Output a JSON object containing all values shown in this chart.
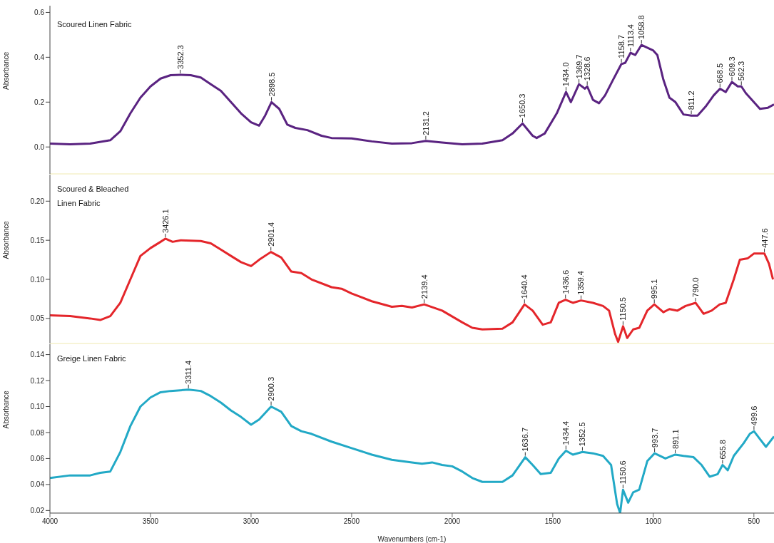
{
  "chart_data": [
    {
      "type": "line",
      "title": "Scoured Linen Fabric",
      "ylabel": "Absorbance",
      "xlim": [
        4000,
        400
      ],
      "ylim": [
        -0.12,
        0.63
      ],
      "yticks": [
        {
          "value": 0,
          "label": "0.0"
        },
        {
          "value": 0.2,
          "label": "0.2"
        },
        {
          "value": 0.4,
          "label": "0.4"
        },
        {
          "value": 0.6,
          "label": "0.6"
        }
      ],
      "tick_labels": "y",
      "x": [
        4000,
        3900,
        3800,
        3700,
        3650,
        3600,
        3550,
        3500,
        3450,
        3400,
        3352.3,
        3300,
        3250,
        3200,
        3150,
        3100,
        3050,
        3000,
        2960,
        2930,
        2898.5,
        2860,
        2820,
        2780,
        2720,
        2650,
        2600,
        2500,
        2400,
        2300,
        2200,
        2131.2,
        2050,
        1950,
        1850,
        1750,
        1700,
        1650.3,
        1600,
        1580,
        1540,
        1480,
        1434,
        1410,
        1369.7,
        1340,
        1328.6,
        1300,
        1270,
        1240,
        1200,
        1158.7,
        1140,
        1113.4,
        1090,
        1058.8,
        1000,
        980,
        950,
        920,
        890,
        850,
        811.2,
        780,
        740,
        700,
        668.5,
        640,
        609.3,
        580,
        562.3,
        540,
        500,
        470,
        430,
        400
      ],
      "series": [
        {
          "color": "#5a2381",
          "values": [
            0.015,
            0.012,
            0.015,
            0.03,
            0.07,
            0.15,
            0.22,
            0.27,
            0.305,
            0.32,
            0.322,
            0.32,
            0.31,
            0.28,
            0.25,
            0.2,
            0.15,
            0.11,
            0.095,
            0.14,
            0.2,
            0.17,
            0.1,
            0.085,
            0.075,
            0.05,
            0.04,
            0.038,
            0.025,
            0.015,
            0.017,
            0.027,
            0.02,
            0.012,
            0.015,
            0.03,
            0.06,
            0.105,
            0.05,
            0.04,
            0.06,
            0.15,
            0.245,
            0.2,
            0.28,
            0.26,
            0.27,
            0.21,
            0.195,
            0.23,
            0.3,
            0.37,
            0.375,
            0.42,
            0.41,
            0.455,
            0.43,
            0.41,
            0.3,
            0.22,
            0.2,
            0.145,
            0.14,
            0.14,
            0.18,
            0.23,
            0.26,
            0.245,
            0.29,
            0.27,
            0.27,
            0.24,
            0.2,
            0.17,
            0.175,
            0.19
          ]
        }
      ],
      "annotations": [
        {
          "text": "3352.3",
          "x": 3352.3,
          "y": 0.322
        },
        {
          "text": "2898.5",
          "x": 2898.5,
          "y": 0.2
        },
        {
          "text": "2131.2",
          "x": 2131.2,
          "y": 0.027
        },
        {
          "text": "1650.3",
          "x": 1650.3,
          "y": 0.105
        },
        {
          "text": "1434.0",
          "x": 1434,
          "y": 0.245
        },
        {
          "text": "1369.7",
          "x": 1369.7,
          "y": 0.28
        },
        {
          "text": "1328.6",
          "x": 1328.6,
          "y": 0.27
        },
        {
          "text": "1158.7",
          "x": 1158.7,
          "y": 0.37
        },
        {
          "text": "1113.4",
          "x": 1113.4,
          "y": 0.42
        },
        {
          "text": "1058.8",
          "x": 1058.8,
          "y": 0.455
        },
        {
          "text": "811.2",
          "x": 811.2,
          "y": 0.14
        },
        {
          "text": "668.5",
          "x": 668.5,
          "y": 0.26
        },
        {
          "text": "609.3",
          "x": 609.3,
          "y": 0.29
        },
        {
          "text": "562.3",
          "x": 562.3,
          "y": 0.27
        }
      ]
    },
    {
      "type": "line",
      "title": "Scoured & Bleached Linen Fabric",
      "ylabel": "Absorbance",
      "xlim": [
        4000,
        400
      ],
      "ylim": [
        0.018,
        0.234
      ],
      "yticks": [
        {
          "value": 0.05,
          "label": "0.05"
        },
        {
          "value": 0.1,
          "label": "0.10"
        },
        {
          "value": 0.15,
          "label": "0.15"
        },
        {
          "value": 0.2,
          "label": "0.20"
        }
      ],
      "tick_labels": "y",
      "x": [
        4000,
        3900,
        3800,
        3750,
        3700,
        3650,
        3600,
        3550,
        3500,
        3450,
        3426.1,
        3390,
        3350,
        3250,
        3200,
        3150,
        3100,
        3050,
        3000,
        2960,
        2901.4,
        2850,
        2800,
        2750,
        2700,
        2600,
        2550,
        2500,
        2400,
        2300,
        2250,
        2200,
        2139.4,
        2050,
        1950,
        1900,
        1850,
        1750,
        1700,
        1640.4,
        1600,
        1550,
        1510,
        1470,
        1436.6,
        1400,
        1359.4,
        1300,
        1250,
        1220,
        1190,
        1175,
        1150.5,
        1130,
        1100,
        1070,
        1030,
        995.1,
        950,
        920,
        880,
        840,
        790,
        750,
        710,
        670,
        640,
        600,
        570,
        530,
        500,
        447.6,
        425,
        405
      ],
      "series": [
        {
          "color": "#e4262b",
          "values": [
            0.054,
            0.053,
            0.05,
            0.048,
            0.053,
            0.07,
            0.1,
            0.13,
            0.14,
            0.148,
            0.152,
            0.148,
            0.15,
            0.149,
            0.146,
            0.138,
            0.13,
            0.122,
            0.117,
            0.125,
            0.135,
            0.128,
            0.11,
            0.108,
            0.1,
            0.09,
            0.088,
            0.082,
            0.072,
            0.065,
            0.066,
            0.064,
            0.068,
            0.06,
            0.045,
            0.038,
            0.036,
            0.037,
            0.045,
            0.068,
            0.06,
            0.042,
            0.045,
            0.07,
            0.074,
            0.07,
            0.073,
            0.07,
            0.066,
            0.06,
            0.03,
            0.02,
            0.04,
            0.025,
            0.036,
            0.038,
            0.06,
            0.068,
            0.058,
            0.062,
            0.06,
            0.066,
            0.07,
            0.056,
            0.06,
            0.068,
            0.07,
            0.1,
            0.125,
            0.127,
            0.133,
            0.133,
            0.12,
            0.1
          ]
        }
      ],
      "annotations": [
        {
          "text": "3426.1",
          "x": 3426.1,
          "y": 0.152
        },
        {
          "text": "2901.4",
          "x": 2901.4,
          "y": 0.135
        },
        {
          "text": "2139.4",
          "x": 2139.4,
          "y": 0.068
        },
        {
          "text": "1640.4",
          "x": 1640.4,
          "y": 0.068
        },
        {
          "text": "1436.6",
          "x": 1436.6,
          "y": 0.074
        },
        {
          "text": "1359.4",
          "x": 1359.4,
          "y": 0.073
        },
        {
          "text": "1150.5",
          "x": 1150.5,
          "y": 0.04
        },
        {
          "text": "995.1",
          "x": 995.1,
          "y": 0.068
        },
        {
          "text": "790.0",
          "x": 790,
          "y": 0.07
        },
        {
          "text": "447.6",
          "x": 447.6,
          "y": 0.133
        }
      ]
    },
    {
      "type": "line",
      "title": "Greige Linen Fabric",
      "ylabel": "Absorbance",
      "xlabel": "Wavenumbers (cm-1)",
      "xlim": [
        4000,
        400
      ],
      "xticks": [
        4000,
        3500,
        3000,
        2500,
        2000,
        1500,
        1000,
        500
      ],
      "ylim": [
        0.018,
        0.148
      ],
      "yticks": [
        {
          "value": 0.02,
          "label": "0.02"
        },
        {
          "value": 0.04,
          "label": "0.04"
        },
        {
          "value": 0.06,
          "label": "0.06"
        },
        {
          "value": 0.08,
          "label": "0.08"
        },
        {
          "value": 0.1,
          "label": "0.10"
        },
        {
          "value": 0.12,
          "label": "0.12"
        },
        {
          "value": 0.14,
          "label": "0.14"
        }
      ],
      "x": [
        4000,
        3900,
        3800,
        3750,
        3700,
        3650,
        3600,
        3550,
        3500,
        3450,
        3400,
        3311.4,
        3250,
        3200,
        3150,
        3100,
        3050,
        3000,
        2960,
        2900.3,
        2850,
        2800,
        2750,
        2700,
        2600,
        2500,
        2400,
        2300,
        2200,
        2150,
        2100,
        2050,
        2000,
        1950,
        1900,
        1850,
        1750,
        1700,
        1636.7,
        1600,
        1560,
        1510,
        1470,
        1434.4,
        1400,
        1352.5,
        1300,
        1250,
        1210,
        1180,
        1165,
        1150.6,
        1125,
        1100,
        1070,
        1030,
        993.7,
        940,
        891.1,
        850,
        800,
        760,
        720,
        680,
        655.8,
        630,
        600,
        550,
        520,
        499.6,
        470,
        440,
        410,
        400
      ],
      "series": [
        {
          "color": "#22a9c6",
          "values": [
            0.045,
            0.047,
            0.047,
            0.049,
            0.05,
            0.065,
            0.085,
            0.1,
            0.107,
            0.111,
            0.112,
            0.113,
            0.112,
            0.108,
            0.103,
            0.097,
            0.092,
            0.086,
            0.09,
            0.1,
            0.096,
            0.085,
            0.081,
            0.079,
            0.073,
            0.068,
            0.063,
            0.059,
            0.057,
            0.056,
            0.057,
            0.055,
            0.054,
            0.05,
            0.045,
            0.042,
            0.042,
            0.047,
            0.061,
            0.055,
            0.048,
            0.049,
            0.06,
            0.066,
            0.063,
            0.065,
            0.064,
            0.062,
            0.055,
            0.025,
            0.018,
            0.036,
            0.026,
            0.034,
            0.036,
            0.058,
            0.064,
            0.06,
            0.063,
            0.062,
            0.061,
            0.055,
            0.046,
            0.048,
            0.055,
            0.051,
            0.062,
            0.072,
            0.079,
            0.081,
            0.075,
            0.069,
            0.075,
            0.077
          ]
        }
      ],
      "annotations": [
        {
          "text": "3311.4",
          "x": 3311.4,
          "y": 0.113
        },
        {
          "text": "2900.3",
          "x": 2900.3,
          "y": 0.1
        },
        {
          "text": "1636.7",
          "x": 1636.7,
          "y": 0.061
        },
        {
          "text": "1434.4",
          "x": 1434.4,
          "y": 0.066
        },
        {
          "text": "1352.5",
          "x": 1352.5,
          "y": 0.065
        },
        {
          "text": "1150.6",
          "x": 1150.6,
          "y": 0.036
        },
        {
          "text": "993.7",
          "x": 993.7,
          "y": 0.064
        },
        {
          "text": "891.1",
          "x": 891.1,
          "y": 0.063
        },
        {
          "text": "655.8",
          "x": 655.8,
          "y": 0.055
        },
        {
          "text": "499.6",
          "x": 499.6,
          "y": 0.081
        }
      ]
    }
  ]
}
